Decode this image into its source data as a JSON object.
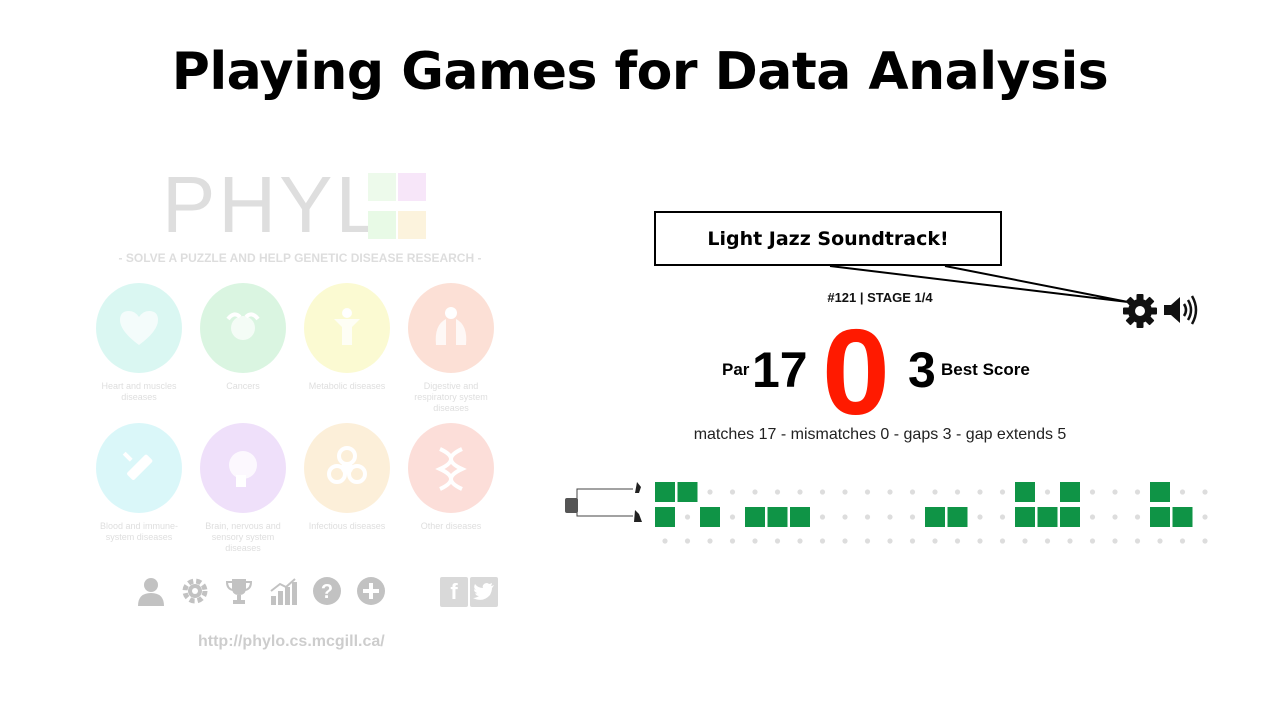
{
  "slide": {
    "title": "Playing Games for Data Analysis"
  },
  "phylo": {
    "logo_text": "PHYL",
    "tagline": "- SOLVE A PUZZLE AND HELP GENETIC DISEASE RESEARCH -",
    "categories": [
      {
        "label": "Heart and muscles diseases",
        "color": "#8fe7d9",
        "icon": "heart-icon"
      },
      {
        "label": "Cancers",
        "color": "#8fe3a4",
        "icon": "crab-icon"
      },
      {
        "label": "Metabolic diseases",
        "color": "#f3f275",
        "icon": "body-icon"
      },
      {
        "label": "Digestive and respiratory system diseases",
        "color": "#f7a182",
        "icon": "lungs-icon"
      },
      {
        "label": "Blood and immune-system diseases",
        "color": "#8fe8ee",
        "icon": "syringe-icon"
      },
      {
        "label": "Brain, nervous and sensory system diseases",
        "color": "#cfa2f0",
        "icon": "brain-icon"
      },
      {
        "label": "Infectious diseases",
        "color": "#f8cf8c",
        "icon": "biohazard-icon"
      },
      {
        "label": "Other diseases",
        "color": "#f89c8c",
        "icon": "dna-icon"
      }
    ],
    "bottom_icons": [
      "user-icon",
      "gear-icon",
      "trophy-icon",
      "stats-icon",
      "help-icon",
      "add-icon"
    ],
    "social": [
      "f",
      "t"
    ],
    "url": "http://phylo.cs.mcgill.ca/"
  },
  "callout": {
    "text": "Light Jazz Soundtrack!"
  },
  "game": {
    "stage": "#121 | STAGE 1/4",
    "par_label": "Par",
    "par_value": "17",
    "score": "0",
    "best_value": "3",
    "best_label": "Best Score",
    "stats": "matches 17 - mismatches 0 - gaps 3 - gap extends 5",
    "colors": {
      "block": "#0f9446",
      "score": "#ff1a00",
      "dot": "#dddddd"
    },
    "grid": {
      "columns": 25,
      "rows": [
        [
          1,
          1,
          0,
          0,
          0,
          0,
          0,
          0,
          0,
          0,
          0,
          0,
          0,
          0,
          0,
          0,
          1,
          0,
          1,
          0,
          0,
          0,
          1,
          0,
          0
        ],
        [
          1,
          0,
          1,
          0,
          1,
          1,
          1,
          0,
          0,
          0,
          0,
          0,
          1,
          1,
          0,
          0,
          1,
          1,
          1,
          0,
          0,
          0,
          1,
          1,
          0
        ],
        [
          0,
          0,
          0,
          0,
          0,
          0,
          0,
          0,
          0,
          0,
          0,
          0,
          0,
          0,
          0,
          0,
          0,
          0,
          0,
          0,
          0,
          0,
          0,
          0,
          0
        ]
      ]
    }
  }
}
